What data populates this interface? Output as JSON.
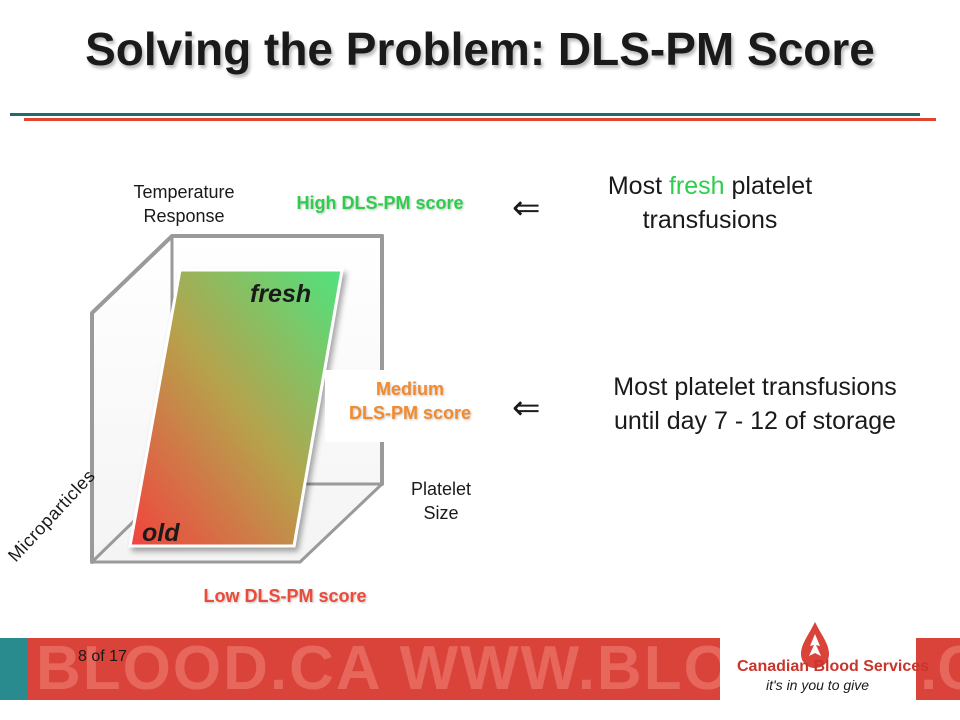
{
  "slide": {
    "title": "Solving the Problem: DLS-PM Score",
    "axes": {
      "temperature": "Temperature\nResponse",
      "platelet_size": "Platelet\nSize",
      "microparticles": "Microparticles"
    },
    "plane": {
      "top_label": "fresh",
      "bottom_label": "old"
    },
    "scores": {
      "high": "High DLS-PM score",
      "medium": "Medium\nDLS-PM score",
      "low": "Low DLS-PM score"
    },
    "arrow_symbol": "⇐",
    "descriptions": {
      "fresh_prefix": "Most ",
      "fresh_word": "fresh",
      "fresh_suffix": " platelet\ntransfusions",
      "medium": "Most platelet transfusions\nuntil day 7 - 12 of storage"
    }
  },
  "footer": {
    "watermark": "BLOOD.CA WWW.BLOOD.CA WWW.",
    "watermark_right": ".C",
    "page_number": "8 of 17",
    "logo_name": "Canadian Blood Services",
    "logo_tagline": "it's in you to give"
  },
  "colors": {
    "high": "#2fcd4d",
    "medium": "#f28a2e",
    "low": "#ee4a3a",
    "footer_teal": "#1c5a60",
    "footer_red": "#d9433a"
  }
}
